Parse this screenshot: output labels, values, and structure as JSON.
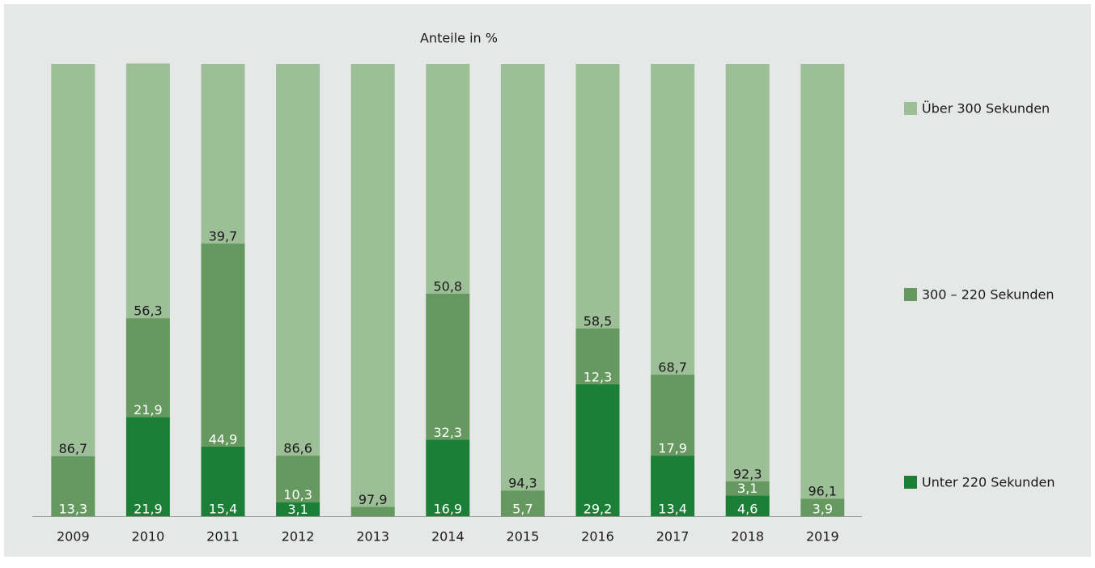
{
  "chart_data": {
    "type": "stacked_bar",
    "title": "Anteile in %",
    "categories": [
      "2009",
      "2010",
      "2011",
      "2012",
      "2013",
      "2014",
      "2015",
      "2016",
      "2017",
      "2018",
      "2019"
    ],
    "ylim": [
      0,
      100
    ],
    "series": [
      {
        "name": "Unter 220  Sekunden",
        "color": "#1b7f38",
        "label_color": "#ffffff",
        "values": [
          0,
          21.9,
          15.4,
          3.1,
          0,
          16.9,
          0,
          29.2,
          13.4,
          4.6,
          0
        ],
        "value_labels": [
          null,
          "21,9",
          "15,4",
          "3,1",
          null,
          "16,9",
          null,
          "29,2",
          "13,4",
          "4,6",
          null
        ]
      },
      {
        "name": "300 – 220  Sekunden",
        "color": "#66995f",
        "label_color": "#ffffff",
        "values": [
          13.3,
          21.9,
          44.9,
          10.3,
          2.1,
          32.3,
          5.7,
          12.3,
          17.9,
          3.1,
          3.9
        ],
        "value_labels": [
          "13,3",
          "21,9",
          "44,9",
          "10,3",
          null,
          "32,3",
          "5,7",
          "12,3",
          "17,9",
          "3,1",
          "3,9"
        ]
      },
      {
        "name": "Über 300  Sekunden",
        "color": "#9dbf98",
        "label_color": "#1a1a1a",
        "values": [
          86.7,
          56.3,
          39.7,
          86.6,
          97.9,
          50.8,
          94.3,
          58.5,
          68.7,
          92.3,
          96.1
        ],
        "value_labels": [
          "86,7",
          "56,3",
          "39,7",
          "86,6",
          "97,9",
          "50,8",
          "94,3",
          "58,5",
          "68,7",
          "92,3",
          "96,1"
        ]
      }
    ]
  }
}
